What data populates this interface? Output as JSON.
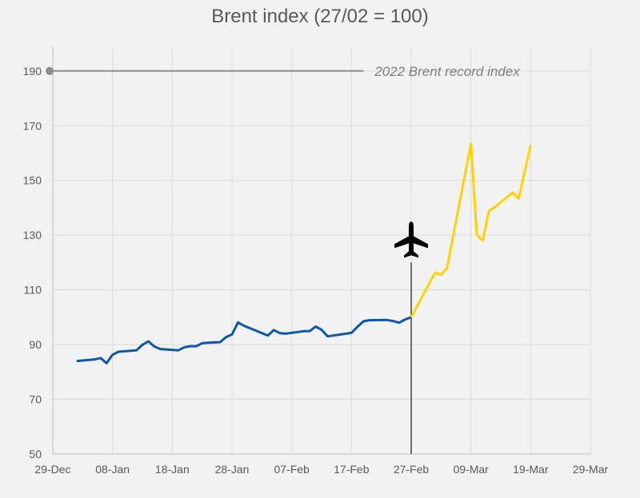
{
  "chart_data": {
    "type": "line",
    "title": "Brent index (27/02 = 100)",
    "xlabel": "",
    "ylabel": "",
    "grid": true,
    "xlim": [
      "2021-12-29",
      "2022-03-29"
    ],
    "ylim": [
      50,
      199
    ],
    "y_ticks": [
      50,
      70,
      90,
      110,
      130,
      150,
      170,
      190
    ],
    "x_ticks": [
      {
        "date": "2021-12-29",
        "label": "29-Dec"
      },
      {
        "date": "2022-01-08",
        "label": "08-Jan"
      },
      {
        "date": "2022-01-18",
        "label": "18-Jan"
      },
      {
        "date": "2022-01-28",
        "label": "28-Jan"
      },
      {
        "date": "2022-02-07",
        "label": "07-Feb"
      },
      {
        "date": "2022-02-17",
        "label": "17-Feb"
      },
      {
        "date": "2022-02-27",
        "label": "27-Feb"
      },
      {
        "date": "2022-03-09",
        "label": "09-Mar"
      },
      {
        "date": "2022-03-19",
        "label": "19-Mar"
      },
      {
        "date": "2022-03-29",
        "label": "29-Mar"
      }
    ],
    "series": [
      {
        "color": "#0b58a6",
        "points": [
          [
            "2022-01-02",
            84.0
          ],
          [
            "2022-01-05",
            84.6
          ],
          [
            "2022-01-06",
            85.1
          ],
          [
            "2022-01-07",
            83.2
          ],
          [
            "2022-01-08",
            86.3
          ],
          [
            "2022-01-09",
            87.4
          ],
          [
            "2022-01-12",
            87.9
          ],
          [
            "2022-01-13",
            89.9
          ],
          [
            "2022-01-14",
            91.2
          ],
          [
            "2022-01-15",
            89.3
          ],
          [
            "2022-01-16",
            88.4
          ],
          [
            "2022-01-19",
            87.9
          ],
          [
            "2022-01-20",
            89.0
          ],
          [
            "2022-01-21",
            89.4
          ],
          [
            "2022-01-22",
            89.4
          ],
          [
            "2022-01-23",
            90.5
          ],
          [
            "2022-01-24",
            90.7
          ],
          [
            "2022-01-26",
            90.9
          ],
          [
            "2022-01-27",
            92.7
          ],
          [
            "2022-01-28",
            93.7
          ],
          [
            "2022-01-29",
            98.1
          ],
          [
            "2022-01-30",
            96.9
          ],
          [
            "2022-02-03",
            93.3
          ],
          [
            "2022-02-04",
            95.3
          ],
          [
            "2022-02-05",
            94.2
          ],
          [
            "2022-02-06",
            94.0
          ],
          [
            "2022-02-09",
            94.9
          ],
          [
            "2022-02-10",
            94.9
          ],
          [
            "2022-02-11",
            96.6
          ],
          [
            "2022-02-12",
            95.4
          ],
          [
            "2022-02-13",
            93.0
          ],
          [
            "2022-02-17",
            94.3
          ],
          [
            "2022-02-18",
            96.5
          ],
          [
            "2022-02-19",
            98.5
          ],
          [
            "2022-02-20",
            98.9
          ],
          [
            "2022-02-23",
            99.0
          ],
          [
            "2022-02-24",
            98.6
          ],
          [
            "2022-02-25",
            98.0
          ],
          [
            "2022-02-26",
            99.2
          ],
          [
            "2022-02-27",
            100.0
          ]
        ]
      },
      {
        "color": "#ffd200",
        "points": [
          [
            "2022-02-27",
            100.0
          ],
          [
            "2022-03-03",
            116.3
          ],
          [
            "2022-03-04",
            115.5
          ],
          [
            "2022-03-05",
            118.0
          ],
          [
            "2022-03-09",
            163.4
          ],
          [
            "2022-03-10",
            130.0
          ],
          [
            "2022-03-11",
            128.0
          ],
          [
            "2022-03-12",
            138.8
          ],
          [
            "2022-03-13",
            140.2
          ],
          [
            "2022-03-16",
            145.6
          ],
          [
            "2022-03-17",
            143.3
          ],
          [
            "2022-03-19",
            162.9
          ]
        ]
      }
    ],
    "annotations": [
      {
        "type": "hline",
        "y": 190,
        "x_start": "2021-12-29",
        "x_end": "2022-02-19",
        "color": "#8c8c8c",
        "label": "2022 Brent record index"
      },
      {
        "type": "vline",
        "x": "2022-02-27",
        "y_start": 50,
        "y_end": 120,
        "color": "#404040",
        "icon": "airplane-icon"
      }
    ]
  }
}
